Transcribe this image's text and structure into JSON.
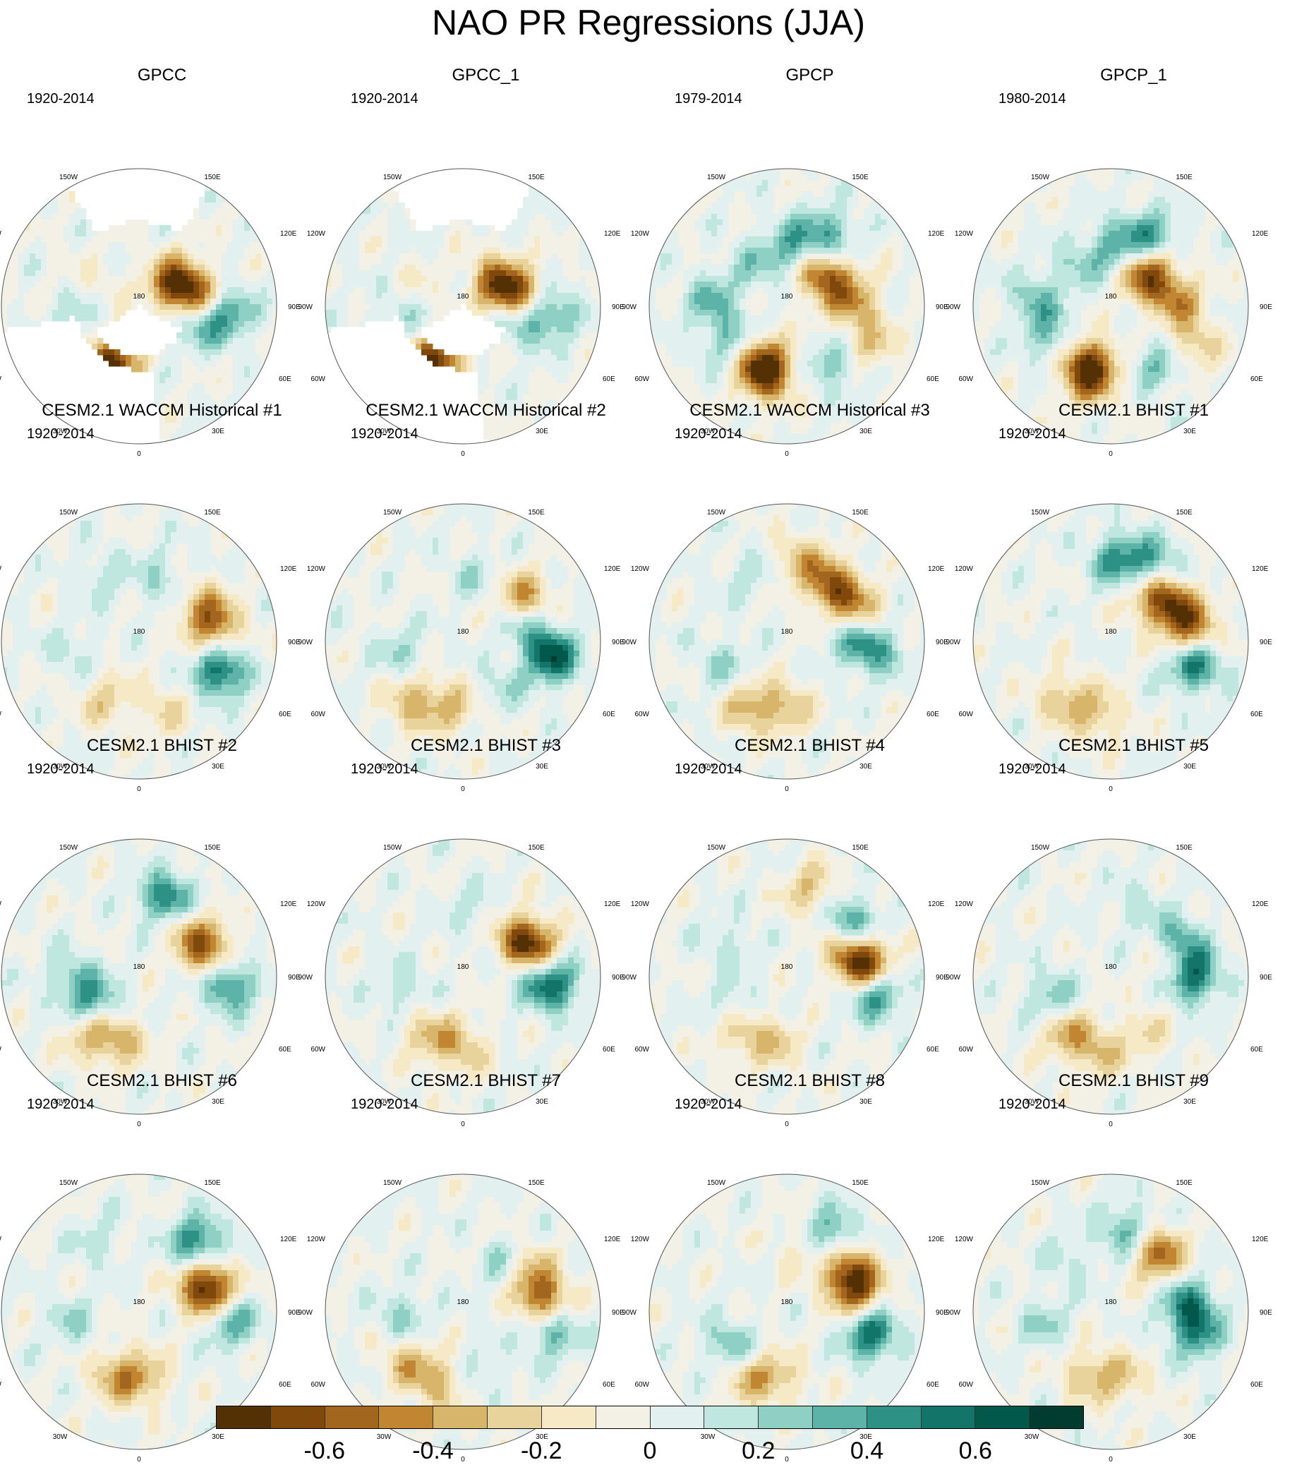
{
  "title": "NAO PR Regressions (JJA)",
  "lon_labels": {
    "top": "180",
    "bottom": "0",
    "left": "90W",
    "right": "90E",
    "upper_left_outer": "120W",
    "upper_left_inner": "150W",
    "upper_right_inner": "150E",
    "upper_right_outer": "120E",
    "lower_left_outer": "60W",
    "lower_left_inner": "30W",
    "lower_right_outer": "60E",
    "lower_right_inner": "30E"
  },
  "panels": [
    {
      "title": "GPCC",
      "period": "1920-2014",
      "masked": true,
      "seed": 11,
      "blobs": [
        [
          -30,
          45,
          -0.45
        ],
        [
          -20,
          52,
          -0.35
        ],
        [
          100,
          52,
          -0.55
        ],
        [
          125,
          62,
          -0.6
        ],
        [
          75,
          50,
          0.35
        ],
        [
          85,
          30,
          0.4
        ],
        [
          -95,
          55,
          0.2
        ],
        [
          -110,
          58,
          -0.2
        ],
        [
          -70,
          35,
          0.15
        ]
      ]
    },
    {
      "title": "GPCC_1",
      "period": "1920-2014",
      "masked": true,
      "seed": 12,
      "blobs": [
        [
          -30,
          45,
          -0.45
        ],
        [
          -20,
          52,
          -0.35
        ],
        [
          100,
          52,
          -0.5
        ],
        [
          125,
          62,
          -0.55
        ],
        [
          75,
          50,
          0.3
        ],
        [
          85,
          30,
          0.35
        ],
        [
          -95,
          55,
          0.2
        ],
        [
          -110,
          58,
          -0.2
        ],
        [
          -70,
          35,
          0.15
        ]
      ]
    },
    {
      "title": "GPCP",
      "period": "1979-2014",
      "masked": false,
      "seed": 13,
      "blobs": [
        [
          -25,
          50,
          -0.55
        ],
        [
          -15,
          40,
          -0.45
        ],
        [
          130,
          58,
          -0.6
        ],
        [
          95,
          45,
          -0.4
        ],
        [
          150,
          35,
          0.4
        ],
        [
          175,
          50,
          0.35
        ],
        [
          -60,
          45,
          0.3
        ],
        [
          -95,
          40,
          0.3
        ],
        [
          40,
          40,
          0.3
        ],
        [
          -140,
          55,
          0.2
        ],
        [
          65,
          30,
          -0.3
        ]
      ]
    },
    {
      "title": "GPCP_1",
      "period": "1980-2014",
      "masked": false,
      "seed": 14,
      "blobs": [
        [
          -25,
          50,
          -0.55
        ],
        [
          -15,
          40,
          -0.45
        ],
        [
          130,
          58,
          -0.65
        ],
        [
          95,
          45,
          -0.4
        ],
        [
          150,
          35,
          0.4
        ],
        [
          175,
          50,
          0.35
        ],
        [
          -60,
          45,
          0.3
        ],
        [
          -95,
          40,
          0.3
        ],
        [
          40,
          40,
          0.3
        ],
        [
          -140,
          55,
          0.2
        ],
        [
          65,
          30,
          -0.3
        ]
      ]
    },
    {
      "title": "CESM2.1 WACCM Historical #1",
      "period": "1920-2014",
      "masked": false,
      "seed": 21,
      "blobs": [
        [
          70,
          32,
          0.6
        ],
        [
          100,
          38,
          -0.45
        ],
        [
          120,
          42,
          -0.3
        ],
        [
          -30,
          45,
          -0.25
        ],
        [
          20,
          40,
          -0.2
        ],
        [
          160,
          45,
          0.2
        ],
        [
          -80,
          45,
          0.15
        ],
        [
          -150,
          40,
          0.15
        ]
      ]
    },
    {
      "title": "CESM2.1 WACCM Historical #2",
      "period": "1920-2014",
      "masked": false,
      "seed": 22,
      "blobs": [
        [
          80,
          30,
          0.65
        ],
        [
          125,
          40,
          -0.5
        ],
        [
          105,
          45,
          0.3
        ],
        [
          -40,
          38,
          -0.35
        ],
        [
          -10,
          45,
          -0.3
        ],
        [
          -80,
          48,
          0.2
        ],
        [
          40,
          50,
          0.15
        ],
        [
          170,
          45,
          0.15
        ]
      ]
    },
    {
      "title": "CESM2.1 WACCM Historical #3",
      "period": "1920-2014",
      "masked": false,
      "seed": 23,
      "blobs": [
        [
          140,
          42,
          -0.6
        ],
        [
          110,
          40,
          -0.5
        ],
        [
          85,
          32,
          0.45
        ],
        [
          100,
          48,
          0.35
        ],
        [
          -30,
          40,
          -0.35
        ],
        [
          0,
          45,
          -0.3
        ],
        [
          -70,
          45,
          0.2
        ],
        [
          170,
          35,
          -0.3
        ],
        [
          -150,
          40,
          0.15
        ]
      ]
    },
    {
      "title": "CESM2.1 BHIST #1",
      "period": "1920-2014",
      "masked": false,
      "seed": 24,
      "blobs": [
        [
          120,
          42,
          -0.6
        ],
        [
          95,
          35,
          -0.5
        ],
        [
          75,
          32,
          0.6
        ],
        [
          175,
          35,
          0.45
        ],
        [
          150,
          30,
          0.35
        ],
        [
          -40,
          40,
          -0.3
        ],
        [
          -10,
          40,
          -0.3
        ],
        [
          140,
          50,
          -0.3
        ]
      ]
    },
    {
      "title": "CESM2.1 BHIST #2",
      "period": "1920-2014",
      "masked": false,
      "seed": 31,
      "blobs": [
        [
          160,
          35,
          0.55
        ],
        [
          110,
          40,
          -0.5
        ],
        [
          85,
          30,
          0.5
        ],
        [
          -40,
          40,
          -0.35
        ],
        [
          -15,
          45,
          -0.3
        ],
        [
          -60,
          55,
          0.4
        ],
        [
          -90,
          45,
          0.25
        ],
        [
          135,
          45,
          -0.3
        ]
      ]
    },
    {
      "title": "CESM2.1 BHIST #3",
      "period": "1920-2014",
      "masked": false,
      "seed": 32,
      "blobs": [
        [
          110,
          40,
          -0.6
        ],
        [
          85,
          30,
          0.6
        ],
        [
          125,
          45,
          -0.45
        ],
        [
          -30,
          45,
          -0.3
        ],
        [
          0,
          42,
          -0.3
        ],
        [
          -80,
          48,
          0.2
        ],
        [
          100,
          48,
          0.25
        ],
        [
          170,
          45,
          0.15
        ]
      ]
    },
    {
      "title": "CESM2.1 BHIST #4",
      "period": "1920-2014",
      "masked": false,
      "seed": 33,
      "blobs": [
        [
          95,
          35,
          -0.6
        ],
        [
          110,
          45,
          -0.5
        ],
        [
          80,
          30,
          0.55
        ],
        [
          130,
          35,
          0.45
        ],
        [
          165,
          30,
          -0.3
        ],
        [
          -40,
          42,
          -0.3
        ],
        [
          -10,
          45,
          -0.25
        ],
        [
          -60,
          50,
          0.2
        ],
        [
          -120,
          45,
          0.15
        ]
      ]
    },
    {
      "title": "CESM2.1 BHIST #5",
      "period": "1920-2014",
      "masked": false,
      "seed": 34,
      "blobs": [
        [
          90,
          35,
          0.6
        ],
        [
          115,
          40,
          0.5
        ],
        [
          105,
          48,
          -0.35
        ],
        [
          -40,
          42,
          -0.35
        ],
        [
          -10,
          40,
          -0.3
        ],
        [
          -70,
          48,
          0.3
        ],
        [
          30,
          45,
          -0.2
        ],
        [
          160,
          40,
          0.15
        ]
      ]
    },
    {
      "title": "CESM2.1 BHIST #6",
      "period": "1920-2014",
      "masked": false,
      "seed": 41,
      "blobs": [
        [
          115,
          42,
          -0.55
        ],
        [
          100,
          40,
          -0.45
        ],
        [
          140,
          30,
          0.55
        ],
        [
          85,
          30,
          0.45
        ],
        [
          -20,
          45,
          -0.35
        ],
        [
          5,
          45,
          -0.3
        ],
        [
          -80,
          45,
          0.2
        ],
        [
          -150,
          35,
          0.15
        ]
      ]
    },
    {
      "title": "CESM2.1 BHIST #7",
      "period": "1920-2014",
      "masked": false,
      "seed": 42,
      "blobs": [
        [
          95,
          35,
          -0.6
        ],
        [
          120,
          40,
          -0.45
        ],
        [
          80,
          30,
          0.5
        ],
        [
          135,
          48,
          0.3
        ],
        [
          -20,
          40,
          -0.35
        ],
        [
          -50,
          40,
          -0.3
        ],
        [
          -85,
          50,
          0.25
        ],
        [
          20,
          50,
          0.15
        ]
      ]
    },
    {
      "title": "CESM2.1 BHIST #8",
      "period": "1920-2014",
      "masked": false,
      "seed": 43,
      "blobs": [
        [
          125,
          40,
          -0.55
        ],
        [
          105,
          42,
          -0.5
        ],
        [
          75,
          32,
          0.6
        ],
        [
          150,
          30,
          0.4
        ],
        [
          -60,
          45,
          0.3
        ],
        [
          -30,
          40,
          -0.3
        ],
        [
          -5,
          45,
          -0.25
        ],
        [
          170,
          45,
          -0.15
        ]
      ]
    },
    {
      "title": "CESM2.1 BHIST #9",
      "period": "1920-2014",
      "masked": false,
      "seed": 44,
      "blobs": [
        [
          140,
          40,
          -0.55
        ],
        [
          95,
          38,
          0.5
        ],
        [
          75,
          30,
          0.4
        ],
        [
          170,
          35,
          0.35
        ],
        [
          -20,
          45,
          -0.3
        ],
        [
          10,
          45,
          -0.25
        ],
        [
          -80,
          45,
          0.2
        ],
        [
          -140,
          45,
          0.15
        ]
      ]
    }
  ],
  "colorbar": {
    "colors": [
      "#543005",
      "#80480b",
      "#a3661e",
      "#c28632",
      "#d7b56b",
      "#e9d39c",
      "#f6e9c6",
      "#f3f0e6",
      "#e2f1ef",
      "#bfe6df",
      "#8ed1c4",
      "#5db3a7",
      "#2e9185",
      "#13756a",
      "#01584b",
      "#003c30"
    ],
    "tick_labels": [
      "-0.6",
      "-0.4",
      "-0.2",
      "0",
      "0.2",
      "0.4",
      "0.6"
    ],
    "tick_values": [
      -0.6,
      -0.4,
      -0.2,
      0,
      0.2,
      0.4,
      0.6
    ],
    "range": [
      -0.8,
      0.8
    ]
  }
}
